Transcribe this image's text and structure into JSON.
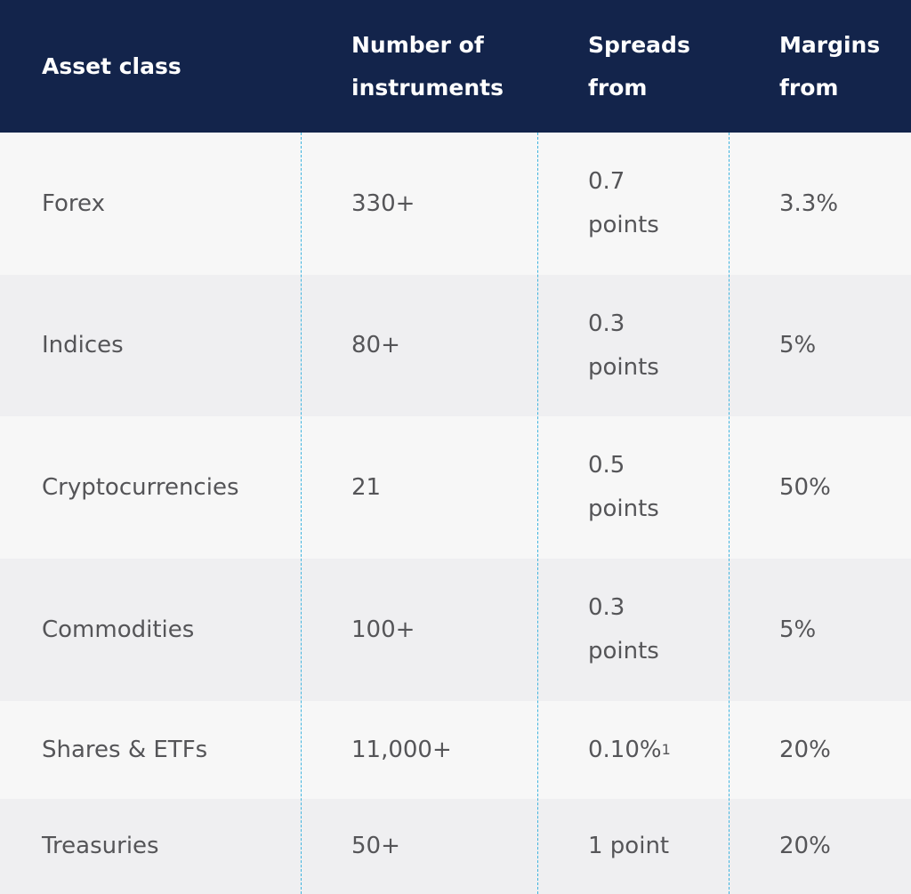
{
  "headers": {
    "asset_class": "Asset class",
    "instruments": "Number of\ninstruments",
    "spreads": "Spreads\nfrom",
    "margins": "Margins\nfrom"
  },
  "rows": [
    {
      "asset": "Forex",
      "instruments": "330+",
      "spread": "0.7\npoints",
      "margin": "3.3%"
    },
    {
      "asset": "Indices",
      "instruments": "80+",
      "spread": "0.3\npoints",
      "margin": "5%"
    },
    {
      "asset": "Cryptocurrencies",
      "instruments": "21",
      "spread": "0.5\npoints",
      "margin": "50%"
    },
    {
      "asset": "Commodities",
      "instruments": "100+",
      "spread": "0.3\npoints",
      "margin": "5%"
    },
    {
      "asset": "Shares & ETFs",
      "instruments": "11,000+",
      "spread": "0.10%",
      "spread_footnote": "1",
      "margin": "20%"
    },
    {
      "asset": "Treasuries",
      "instruments": "50+",
      "spread": "1 point",
      "margin": "20%"
    }
  ],
  "colors": {
    "header_bg": "#13244b",
    "row_light": "#f7f7f7",
    "row_dark": "#efeff1",
    "divider": "#3fb4df",
    "text": "#555558"
  }
}
